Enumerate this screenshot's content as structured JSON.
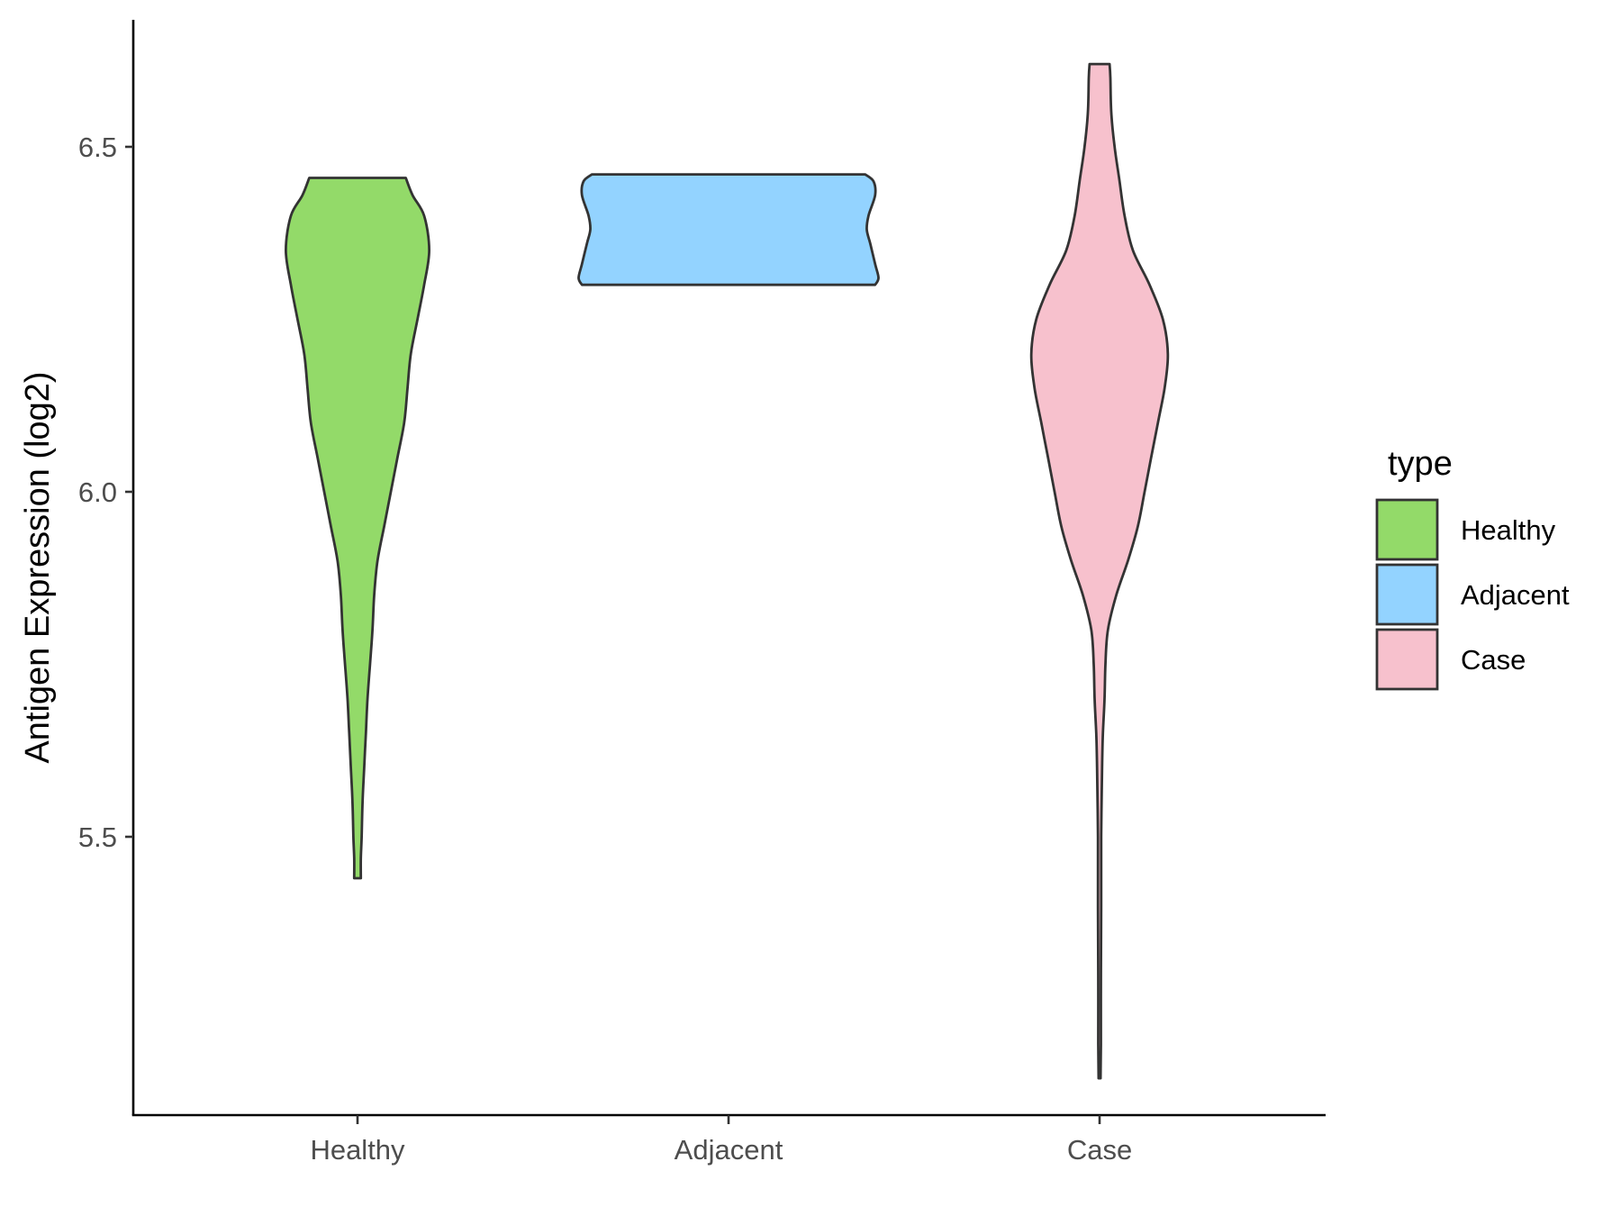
{
  "chart_data": {
    "type": "violin",
    "ylabel": "Antigen Expression (log2)",
    "xlabel": "",
    "y_ticks": [
      "5.5",
      "6.0",
      "6.5"
    ],
    "ylim": [
      5.1,
      6.69
    ],
    "grid": false,
    "legend": {
      "title": "type",
      "position": "right",
      "entries": [
        {
          "label": "Healthy",
          "color": "#93DA69"
        },
        {
          "label": "Adjacent",
          "color": "#93D3FF"
        },
        {
          "label": "Case",
          "color": "#F7C1CD"
        }
      ]
    },
    "categories": [
      "Healthy",
      "Adjacent",
      "Case"
    ],
    "series": [
      {
        "category": "Healthy",
        "color": "#93DA69",
        "y_min": 5.44,
        "y_max": 6.455,
        "density_profile": [
          [
            5.44,
            0.02
          ],
          [
            5.47,
            0.02
          ],
          [
            5.5,
            0.025
          ],
          [
            5.55,
            0.03
          ],
          [
            5.6,
            0.04
          ],
          [
            5.65,
            0.05
          ],
          [
            5.7,
            0.06
          ],
          [
            5.75,
            0.075
          ],
          [
            5.8,
            0.09
          ],
          [
            5.85,
            0.1
          ],
          [
            5.9,
            0.12
          ],
          [
            5.95,
            0.16
          ],
          [
            6.0,
            0.2
          ],
          [
            6.05,
            0.24
          ],
          [
            6.1,
            0.28
          ],
          [
            6.15,
            0.3
          ],
          [
            6.2,
            0.32
          ],
          [
            6.25,
            0.36
          ],
          [
            6.3,
            0.4
          ],
          [
            6.35,
            0.43
          ],
          [
            6.4,
            0.4
          ],
          [
            6.43,
            0.33
          ],
          [
            6.455,
            0.29
          ]
        ]
      },
      {
        "category": "Adjacent",
        "color": "#93D3FF",
        "y_min": 6.3,
        "y_max": 6.46,
        "density_profile": [
          [
            6.3,
            0.88
          ],
          [
            6.31,
            0.9
          ],
          [
            6.33,
            0.88
          ],
          [
            6.36,
            0.85
          ],
          [
            6.38,
            0.83
          ],
          [
            6.4,
            0.84
          ],
          [
            6.43,
            0.88
          ],
          [
            6.45,
            0.87
          ],
          [
            6.46,
            0.82
          ]
        ]
      },
      {
        "category": "Case",
        "color": "#F7C1CD",
        "y_min": 5.15,
        "y_max": 6.62,
        "density_profile": [
          [
            5.15,
            0.006
          ],
          [
            5.2,
            0.008
          ],
          [
            5.3,
            0.008
          ],
          [
            5.4,
            0.01
          ],
          [
            5.5,
            0.01
          ],
          [
            5.6,
            0.015
          ],
          [
            5.65,
            0.02
          ],
          [
            5.7,
            0.03
          ],
          [
            5.75,
            0.035
          ],
          [
            5.8,
            0.05
          ],
          [
            5.85,
            0.1
          ],
          [
            5.9,
            0.17
          ],
          [
            5.95,
            0.23
          ],
          [
            6.0,
            0.27
          ],
          [
            6.05,
            0.31
          ],
          [
            6.1,
            0.35
          ],
          [
            6.15,
            0.39
          ],
          [
            6.2,
            0.41
          ],
          [
            6.25,
            0.38
          ],
          [
            6.3,
            0.3
          ],
          [
            6.35,
            0.2
          ],
          [
            6.4,
            0.15
          ],
          [
            6.45,
            0.12
          ],
          [
            6.5,
            0.09
          ],
          [
            6.55,
            0.07
          ],
          [
            6.6,
            0.065
          ],
          [
            6.62,
            0.06
          ]
        ]
      }
    ]
  }
}
